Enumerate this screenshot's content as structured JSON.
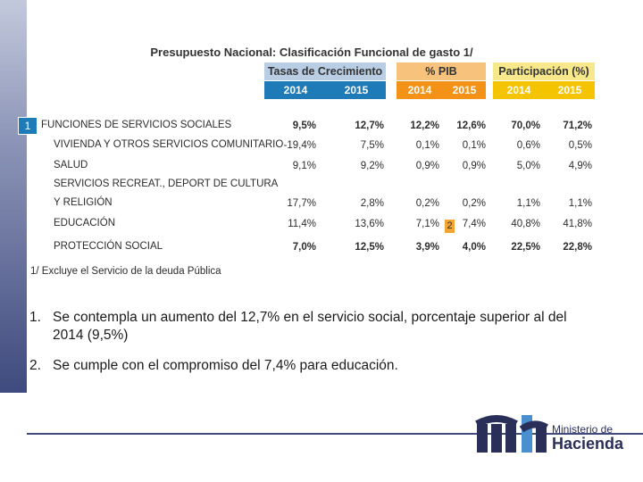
{
  "table": {
    "title": "Presupuesto Nacional: Clasificación Funcional de gasto 1/",
    "groups": {
      "tasas": "Tasas de Crecimiento",
      "pib": "% PIB",
      "part": "Participación (%)"
    },
    "years": [
      "2014",
      "2015",
      "2014",
      "2015",
      "2014",
      "2015"
    ],
    "rows": [
      {
        "label": "FUNCIONES DE SERVICIOS SOCIALES",
        "values": [
          "9,5%",
          "12,7%",
          "12,2%",
          "12,6%",
          "70,0%",
          "71,2%"
        ]
      },
      {
        "label": "VIVIENDA Y OTROS SERVICIOS COMUNITARIO",
        "values": [
          "-19,4%",
          "7,5%",
          "0,1%",
          "0,1%",
          "0,6%",
          "0,5%"
        ]
      },
      {
        "label": "SALUD",
        "values": [
          "9,1%",
          "9,2%",
          "0,9%",
          "0,9%",
          "5,0%",
          "4,9%"
        ]
      },
      {
        "label": "SERVICIOS RECREAT., DEPORT DE CULTURA",
        "values": []
      },
      {
        "label": "Y RELIGIÓN",
        "values": [
          "17,7%",
          "2,8%",
          "0,2%",
          "0,2%",
          "1,1%",
          "1,1%"
        ]
      },
      {
        "label": "EDUCACIÓN",
        "values": [
          "11,4%",
          "13,6%",
          "7,1%",
          "7,4%",
          "40,8%",
          "41,8%"
        ]
      },
      {
        "label": "PROTECCIÓN SOCIAL",
        "values": [
          "7,0%",
          "12,5%",
          "3,9%",
          "4,0%",
          "22,5%",
          "22,8%"
        ]
      }
    ],
    "footnote": "1/ Excluye el Servicio de la deuda Pública",
    "marker1": "1",
    "marker2": "2"
  },
  "notes": [
    {
      "num": "1.",
      "text": "Se contempla un aumento del 12,7% en el servicio social, porcentaje superior al  del 2014 (9,5%)"
    },
    {
      "num": "2.",
      "text": "Se cumple con el compromiso del 7,4% para educación."
    }
  ],
  "logo": {
    "line1": "Ministerio de",
    "line2": "Hacienda",
    "colors": {
      "dark": "#2a2f5a",
      "accent": "#4a8fd0"
    }
  }
}
